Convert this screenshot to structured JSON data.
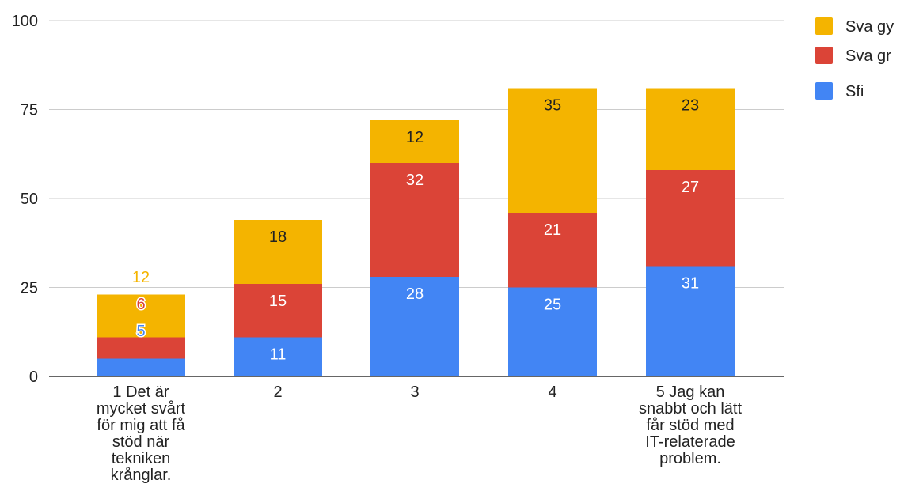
{
  "colors": {
    "sfi": "#4285F4",
    "sva_gr": "#DB4437",
    "sva_gy": "#F4B400",
    "grid": "#cccccc",
    "axis": "#333333",
    "text": "#222222"
  },
  "chart_data": {
    "type": "bar",
    "stacked": true,
    "categories": [
      [
        "1 Det är",
        "mycket svårt",
        "för mig att få",
        "stöd när",
        "tekniken",
        "krånglar."
      ],
      [
        "2"
      ],
      [
        "3"
      ],
      [
        "4"
      ],
      [
        "5 Jag kan",
        "snabbt och lätt",
        "får stöd med",
        "IT-relaterade",
        "problem."
      ]
    ],
    "series": [
      {
        "name": "Sfi",
        "color_key": "sfi",
        "values": [
          5,
          11,
          28,
          25,
          31
        ]
      },
      {
        "name": "Sva gr",
        "color_key": "sva_gr",
        "values": [
          6,
          15,
          32,
          21,
          27
        ]
      },
      {
        "name": "Sva gy",
        "color_key": "sva_gy",
        "values": [
          12,
          18,
          12,
          35,
          23
        ]
      }
    ],
    "ylim": [
      0,
      100
    ],
    "yticks": [
      0,
      25,
      50,
      75,
      100
    ],
    "grid": true,
    "legend": {
      "placement": "top-right",
      "order": [
        "Sva gy",
        "Sva gr",
        "Sfi"
      ]
    },
    "title": "",
    "xlabel": "",
    "ylabel": ""
  }
}
